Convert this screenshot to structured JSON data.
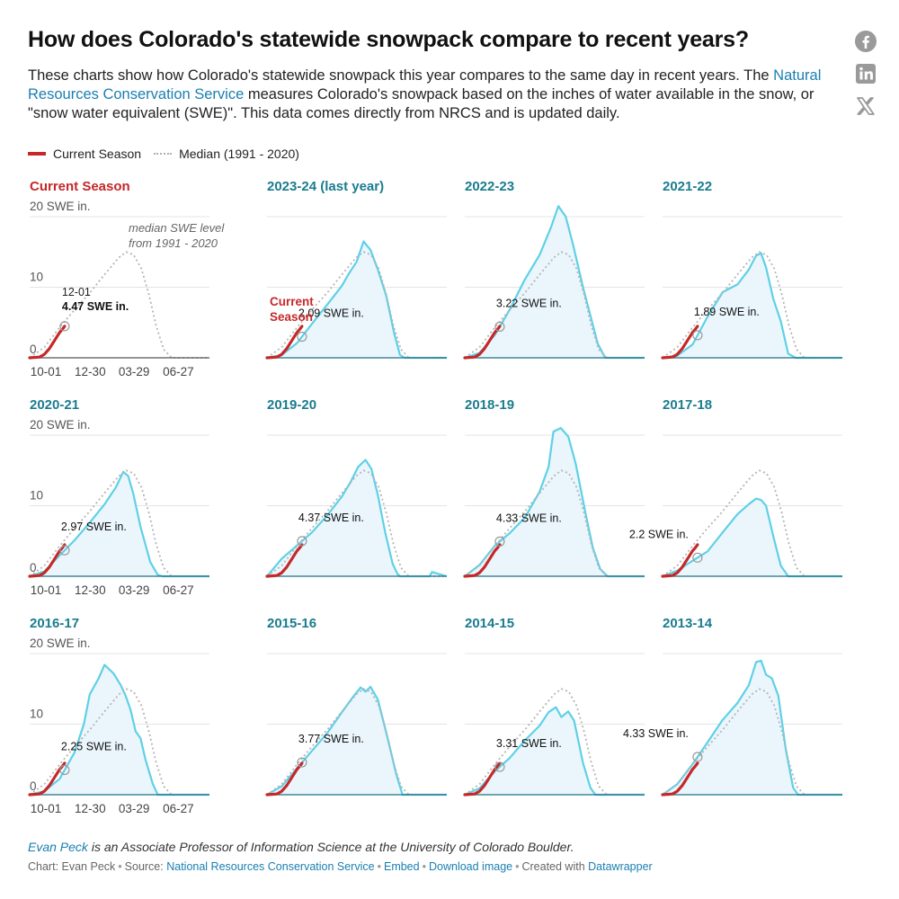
{
  "header": {
    "title": "How does Colorado's statewide snowpack compare to recent years?",
    "intro_before": "These charts show how Colorado's statewide snowpack this year compares to the same day in recent years. The ",
    "intro_link": "Natural Resources Conservation Service",
    "intro_after": " measures Colorado's snowpack based on the inches of water available in the snow, or \"snow water equivalent (SWE)\". This data comes directly from NRCS and is updated daily."
  },
  "social": {
    "facebook": "facebook-icon",
    "linkedin": "linkedin-icon",
    "x": "x-icon"
  },
  "legend": {
    "current": "Current Season",
    "median": "Median (1991 - 2020)",
    "current_color": "#c62828",
    "median_color": "#b0b0b0"
  },
  "colors": {
    "season_line": "#5fd0e6",
    "season_fill": "#eaf6fc",
    "current": "#c62828",
    "median": "#b5b5b5",
    "title_teal": "#1a7c8e",
    "grid": "#e4e4e4"
  },
  "chart_data": {
    "type": "line",
    "unit": "SWE in.",
    "ylim": [
      0,
      20
    ],
    "yticks": [
      0,
      10,
      20
    ],
    "y_top_label": "20 SWE in.",
    "x_tick_labels": [
      "10-01",
      "12-30",
      "03-29",
      "06-27"
    ],
    "x_tick_days": [
      0,
      90,
      179,
      269
    ],
    "season_length_days": 365,
    "median_series": {
      "name": "Median (1991 - 2020)",
      "days": [
        0,
        30,
        61,
        91,
        122,
        152,
        181,
        196,
        211,
        227,
        242,
        257,
        272,
        288,
        303,
        330,
        365
      ],
      "values": [
        0,
        1.5,
        4.3,
        6.8,
        9.2,
        11.8,
        14.2,
        15.0,
        14.6,
        12.6,
        9.0,
        4.5,
        1.2,
        0,
        0,
        0,
        0
      ]
    },
    "current_season": {
      "days": [
        0,
        20,
        30,
        40,
        50,
        61,
        66,
        71
      ],
      "values": [
        0,
        0.1,
        0.5,
        1.3,
        2.4,
        3.6,
        4.0,
        4.47
      ]
    },
    "annotation": {
      "date": "12-01",
      "value_label": "4.47 SWE in.",
      "median_note": "median SWE level from 1991 - 2020",
      "current_label": "Current Season"
    },
    "panels": [
      {
        "title": "Current Season",
        "is_current": true,
        "value_label": "4.47 SWE in.",
        "current_value": 4.47
      },
      {
        "title": "2023-24 (last year)",
        "value_label": "2.09 SWE in.",
        "current_value": 2.09,
        "days": [
          0,
          30,
          61,
          91,
          122,
          152,
          165,
          182,
          196,
          210,
          225,
          242,
          258,
          270,
          280,
          365
        ],
        "values": [
          0,
          0.4,
          2.09,
          4.8,
          7.5,
          10.2,
          11.8,
          13.6,
          16.5,
          15.3,
          12.5,
          8.8,
          3.5,
          0.4,
          0,
          0
        ]
      },
      {
        "title": "2022-23",
        "value_label": "3.22 SWE in.",
        "current_value": 3.22,
        "days": [
          0,
          30,
          61,
          91,
          122,
          152,
          175,
          190,
          205,
          220,
          240,
          255,
          270,
          285,
          300,
          365
        ],
        "values": [
          0,
          0.7,
          3.22,
          6.8,
          11.1,
          14.6,
          18.5,
          21.5,
          20.0,
          16.0,
          10.0,
          6.0,
          2.0,
          0,
          0,
          0
        ]
      },
      {
        "title": "2021-22",
        "value_label": "1.89 SWE in.",
        "current_value": 1.89,
        "days": [
          0,
          30,
          61,
          91,
          122,
          152,
          175,
          190,
          200,
          210,
          225,
          240,
          255,
          270,
          365
        ],
        "values": [
          0,
          0.3,
          1.89,
          5.8,
          9.3,
          10.4,
          12.5,
          14.5,
          14.8,
          12.8,
          8.3,
          5.2,
          0.6,
          0,
          0
        ]
      },
      {
        "title": "2020-21",
        "value_label": "2.97 SWE in.",
        "current_value": 2.97,
        "days": [
          0,
          30,
          61,
          91,
          122,
          152,
          175,
          190,
          200,
          210,
          225,
          245,
          260,
          270,
          365
        ],
        "values": [
          0,
          0.7,
          2.97,
          5.1,
          7.6,
          10.2,
          12.6,
          14.8,
          14.2,
          11.8,
          7.0,
          2.0,
          0.2,
          0,
          0
        ]
      },
      {
        "title": "2019-20",
        "value_label": "4.37 SWE in.",
        "current_value": 4.37,
        "days": [
          0,
          30,
          61,
          91,
          122,
          152,
          170,
          185,
          200,
          212,
          225,
          240,
          255,
          265,
          270,
          330,
          335,
          365
        ],
        "values": [
          0,
          2.5,
          4.37,
          6.2,
          8.6,
          11.3,
          13.4,
          15.5,
          16.5,
          15.2,
          11.5,
          6.2,
          1.8,
          0.3,
          0,
          0,
          0.6,
          0
        ]
      },
      {
        "title": "2018-19",
        "value_label": "4.33 SWE in.",
        "current_value": 4.33,
        "days": [
          0,
          30,
          61,
          91,
          122,
          152,
          170,
          180,
          195,
          210,
          225,
          245,
          260,
          275,
          290,
          365
        ],
        "values": [
          0,
          1.6,
          4.33,
          6.1,
          8.3,
          12.0,
          15.5,
          20.5,
          21.0,
          19.8,
          16.0,
          9.0,
          4.0,
          1.0,
          0,
          0
        ]
      },
      {
        "title": "2017-18",
        "value_label": "2.2 SWE in.",
        "current_value": 2.2,
        "days": [
          0,
          30,
          61,
          91,
          122,
          152,
          175,
          190,
          200,
          210,
          225,
          240,
          255,
          365
        ],
        "values": [
          0,
          0.8,
          2.2,
          3.5,
          6.2,
          8.8,
          10.2,
          11.0,
          10.8,
          10.0,
          5.6,
          1.5,
          0,
          0
        ]
      },
      {
        "title": "2016-17",
        "value_label": "2.25 SWE in.",
        "current_value": 2.25,
        "days": [
          0,
          30,
          61,
          91,
          110,
          122,
          140,
          152,
          170,
          185,
          195,
          205,
          215,
          225,
          235,
          250,
          260,
          365
        ],
        "values": [
          0,
          0.5,
          2.25,
          6.0,
          10.0,
          14.2,
          16.5,
          18.4,
          17.2,
          15.5,
          14.0,
          12.0,
          9.0,
          8.0,
          5.0,
          1.5,
          0,
          0
        ]
      },
      {
        "title": "2015-16",
        "value_label": "3.77 SWE in.",
        "current_value": 3.77,
        "days": [
          0,
          30,
          61,
          91,
          122,
          152,
          175,
          190,
          200,
          210,
          225,
          245,
          262,
          275,
          365
        ],
        "values": [
          0,
          1.2,
          3.77,
          6.2,
          8.7,
          11.7,
          13.9,
          15.2,
          14.6,
          15.3,
          13.5,
          8.0,
          3.0,
          0,
          0
        ]
      },
      {
        "title": "2014-15",
        "value_label": "3.31 SWE in.",
        "current_value": 3.31,
        "days": [
          0,
          30,
          61,
          91,
          122,
          152,
          170,
          185,
          196,
          210,
          222,
          240,
          255,
          265,
          365
        ],
        "values": [
          0,
          0.9,
          3.31,
          5.2,
          7.7,
          9.8,
          11.7,
          12.4,
          11.0,
          11.8,
          10.5,
          4.5,
          1.0,
          0,
          0
        ]
      },
      {
        "title": "2013-14",
        "value_label": "4.33 SWE in.",
        "current_value": 4.33,
        "days": [
          0,
          30,
          61,
          91,
          122,
          152,
          175,
          190,
          200,
          210,
          222,
          235,
          250,
          265,
          275,
          365
        ],
        "values": [
          0,
          1.5,
          4.33,
          7.4,
          10.6,
          13.0,
          15.5,
          18.8,
          19.0,
          17.0,
          16.5,
          14.0,
          6.5,
          1.0,
          0,
          0
        ]
      }
    ]
  },
  "footer": {
    "author_link": "Evan Peck",
    "author_rest": " is an Associate Professor of Information Science at the University of Colorado Boulder.",
    "chart_by": "Chart: Evan Peck",
    "source_prefix": "Source: ",
    "source_link": "National Resources Conservation Service",
    "embed": "Embed",
    "download": "Download image",
    "created_with": "Created with ",
    "tool": "Datawrapper"
  }
}
